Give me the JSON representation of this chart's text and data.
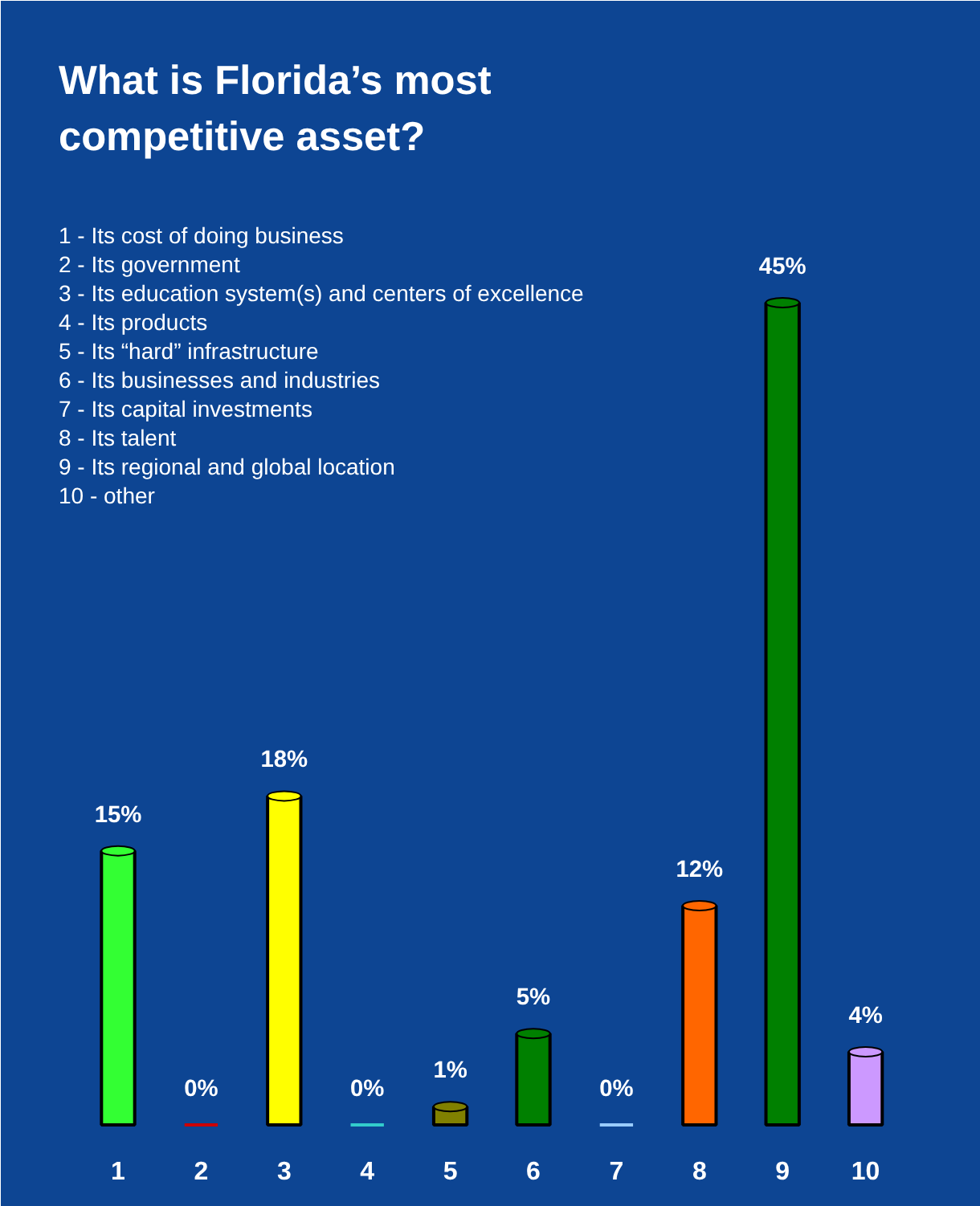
{
  "chart_data": {
    "type": "bar",
    "title": "What is Florida’s most\ncompetitive asset?",
    "categories": [
      "1",
      "2",
      "3",
      "4",
      "5",
      "6",
      "7",
      "8",
      "9",
      "10"
    ],
    "values": [
      15,
      0,
      18,
      0,
      1,
      5,
      0,
      12,
      45,
      4
    ],
    "value_labels": [
      "15%",
      "0%",
      "18%",
      "0%",
      "1%",
      "5%",
      "0%",
      "12%",
      "45%",
      "4%"
    ],
    "colors": [
      "#33ff33",
      "#cc0000",
      "#ffff00",
      "#33cccc",
      "#808000",
      "#008000",
      "#99ccff",
      "#ff6600",
      "#008000",
      "#cc99ff"
    ],
    "annotations": [
      "1 - Its cost of doing business",
      "2 - Its government",
      "3 - Its education system(s) and centers of excellence",
      "4 - Its products",
      "5 - Its “hard” infrastructure",
      "6 - Its businesses and industries",
      "7 - Its capital investments",
      "8 - Its talent",
      "9 - Its regional and global location",
      "10 - other"
    ]
  }
}
